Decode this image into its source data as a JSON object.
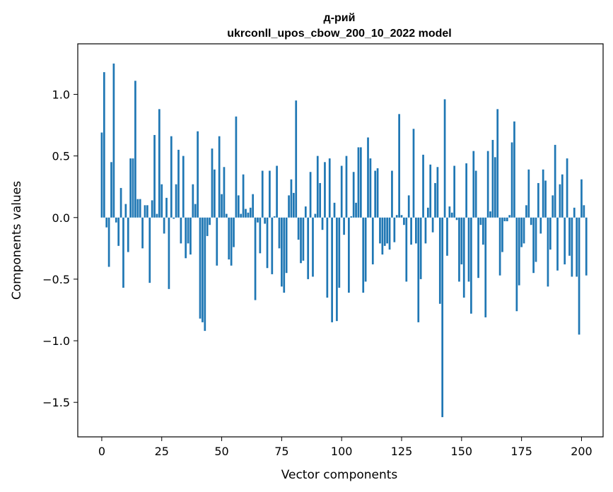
{
  "chart_data": {
    "type": "bar",
    "title": "д-рий",
    "subtitle": "ukrconll_upos_cbow_200_10_2022 model",
    "xlabel": "Vector components",
    "ylabel": "Components values",
    "xlim": [
      -10,
      209
    ],
    "ylim": [
      -1.78,
      1.41
    ],
    "xticks": [
      0,
      25,
      50,
      75,
      100,
      125,
      150,
      175,
      200
    ],
    "yticks": [
      -1.5,
      -1.0,
      -0.5,
      0.0,
      0.5,
      1.0
    ],
    "ytick_labels": [
      "−1.5",
      "−1.0",
      "−0.5",
      "0.0",
      "0.5",
      "1.0"
    ],
    "bar_color": "#1f77b4",
    "grid": false,
    "values": [
      0.69,
      1.18,
      -0.08,
      -0.4,
      0.45,
      1.25,
      -0.04,
      -0.23,
      0.24,
      -0.57,
      0.11,
      -0.28,
      0.48,
      0.48,
      1.11,
      0.15,
      0.15,
      -0.25,
      0.1,
      0.1,
      -0.53,
      0.14,
      0.67,
      0.03,
      0.88,
      0.27,
      -0.13,
      0.16,
      -0.58,
      0.66,
      -0.01,
      0.27,
      0.55,
      -0.21,
      0.5,
      -0.33,
      -0.21,
      -0.3,
      0.27,
      0.11,
      0.7,
      -0.82,
      -0.85,
      -0.92,
      -0.15,
      -0.06,
      0.56,
      0.39,
      -0.39,
      0.66,
      0.19,
      0.41,
      0.03,
      -0.34,
      -0.39,
      -0.24,
      0.82,
      0.18,
      0.03,
      0.35,
      0.07,
      0.04,
      0.08,
      0.19,
      -0.67,
      -0.04,
      -0.29,
      0.38,
      -0.05,
      -0.41,
      0.38,
      -0.46,
      0.01,
      0.42,
      -0.25,
      -0.56,
      -0.61,
      -0.45,
      0.18,
      0.31,
      0.2,
      0.95,
      -0.18,
      -0.37,
      -0.35,
      0.09,
      -0.5,
      0.37,
      -0.48,
      0.03,
      0.5,
      0.28,
      -0.1,
      0.45,
      -0.65,
      0.48,
      -0.85,
      0.12,
      -0.84,
      -0.57,
      0.42,
      -0.14,
      0.5,
      -0.61,
      0.01,
      0.37,
      0.12,
      0.57,
      0.57,
      -0.61,
      -0.52,
      0.65,
      0.48,
      -0.38,
      0.38,
      0.4,
      -0.21,
      -0.3,
      -0.23,
      -0.21,
      -0.26,
      0.38,
      -0.2,
      0.02,
      0.84,
      0.02,
      -0.06,
      -0.52,
      0.18,
      -0.22,
      0.72,
      -0.21,
      -0.85,
      -0.5,
      0.51,
      -0.21,
      0.08,
      0.43,
      -0.12,
      0.28,
      0.41,
      -0.7,
      -1.62,
      0.96,
      -0.31,
      0.09,
      0.04,
      0.42,
      -0.02,
      -0.52,
      -0.38,
      -0.65,
      0.44,
      -0.52,
      -0.78,
      0.54,
      0.38,
      -0.49,
      -0.06,
      -0.22,
      -0.81,
      0.54,
      0.05,
      0.63,
      0.49,
      0.88,
      -0.47,
      -0.28,
      -0.03,
      -0.03,
      0.02,
      0.61,
      0.78,
      -0.76,
      -0.55,
      -0.24,
      -0.21,
      0.1,
      0.39,
      -0.06,
      -0.45,
      -0.36,
      0.28,
      -0.13,
      0.39,
      0.3,
      -0.56,
      -0.26,
      0.18,
      0.59,
      -0.43,
      0.27,
      0.35,
      -0.38,
      0.48,
      -0.31,
      -0.48,
      0.08,
      -0.48,
      -0.95,
      0.31,
      0.1,
      -0.47
    ]
  }
}
